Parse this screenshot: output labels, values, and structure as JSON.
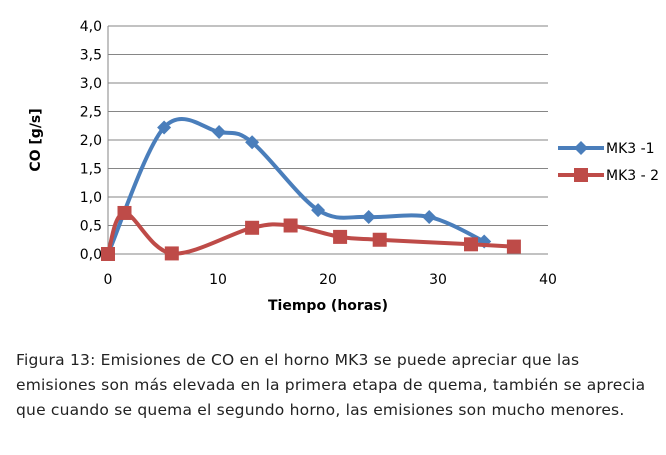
{
  "chart_data": {
    "type": "line",
    "xlabel": "Tiempo (horas)",
    "ylabel": "CO [g/s]",
    "xlim": [
      0,
      40
    ],
    "ylim": [
      0,
      4.0
    ],
    "xticks": [
      "0",
      "10",
      "20",
      "30",
      "40"
    ],
    "yticks": [
      "0,0",
      "0,5",
      "1,0",
      "1,5",
      "2,0",
      "2,5",
      "3,0",
      "3,5",
      "4,0"
    ],
    "grid": "horizontal",
    "legend": "right",
    "series": [
      {
        "name": "MK3 -1",
        "color": "#4a7ebb",
        "marker": "diamond",
        "x": [
          0,
          5.1,
          10.1,
          13.1,
          19.1,
          23.7,
          29.2,
          34.2
        ],
        "y": [
          0,
          2.22,
          2.14,
          1.96,
          0.77,
          0.65,
          0.65,
          0.22
        ]
      },
      {
        "name": "MK3 - 2",
        "color": "#be4b48",
        "marker": "square",
        "x": [
          0,
          1.5,
          5.8,
          13.1,
          16.6,
          21.1,
          24.7,
          33.0,
          36.9
        ],
        "y": [
          0,
          0.72,
          0.01,
          0.46,
          0.5,
          0.3,
          0.25,
          0.17,
          0.13
        ]
      }
    ]
  },
  "caption": {
    "label": "Figura 13",
    "text": ": Emisiones de CO en el horno MK3 se puede apreciar que las emisiones son más elevada en la primera etapa de quema, también se aprecia que cuando se quema el segundo horno, las emisiones son mucho menores."
  }
}
